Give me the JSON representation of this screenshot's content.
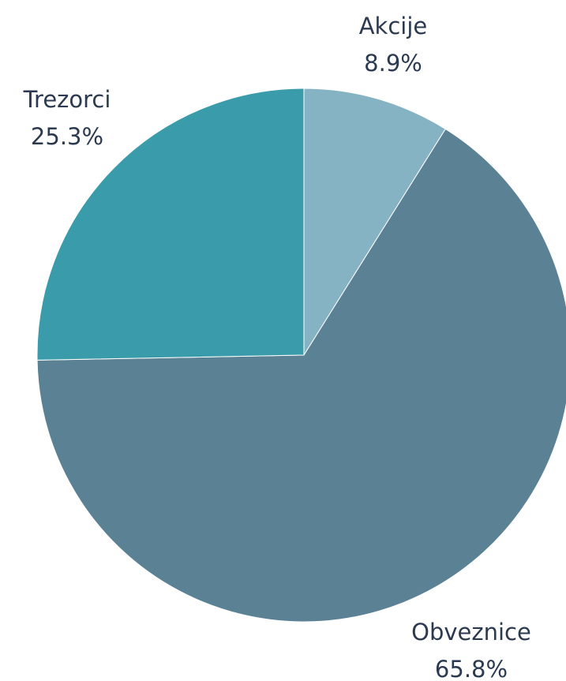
{
  "chart_data": {
    "type": "pie",
    "categories": [
      "Akcije",
      "Obveznice",
      "Trezorci"
    ],
    "values": [
      8.9,
      65.8,
      25.3
    ],
    "value_labels": [
      "8.9%",
      "65.8%",
      "25.3%"
    ],
    "colors": [
      "#86b3c3",
      "#5a8194",
      "#3a9caa"
    ]
  }
}
